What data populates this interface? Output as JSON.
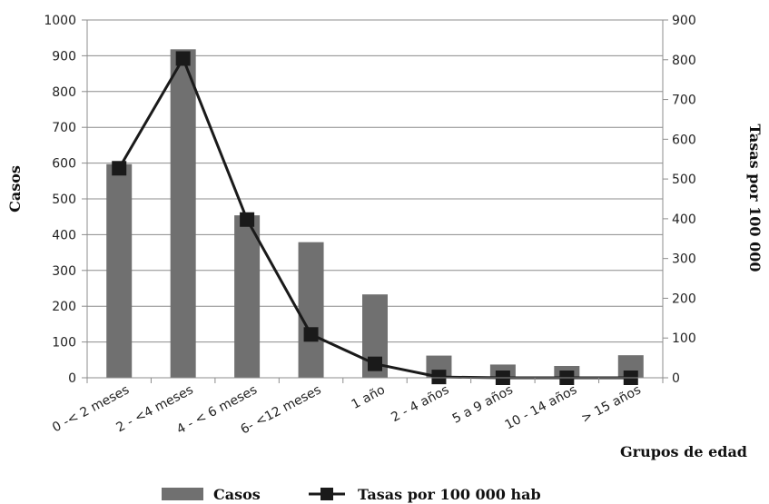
{
  "chart_data": {
    "type": "bar",
    "categories": [
      "0 -< 2 meses",
      "2 - <4 meses",
      "4 - < 6 meses",
      "6- <12 meses",
      "1 año",
      "2 - 4 años",
      "5 a 9 años",
      "10 - 14 años",
      "> 15 años"
    ],
    "series": [
      {
        "name": "Casos",
        "type": "bar",
        "axis": "left",
        "color": "#707070",
        "values": [
          597,
          918,
          454,
          379,
          233,
          62,
          37,
          33,
          63
        ]
      },
      {
        "name": "Tasas por 100 000 hab",
        "type": "line",
        "axis": "right",
        "color": "#1a1a1a",
        "marker": "square",
        "values": [
          527,
          803,
          398,
          109,
          35,
          2,
          0,
          0,
          0
        ]
      }
    ],
    "xlabel": "Grupos de edad",
    "ylabel": "Casos",
    "y2label": "Tasas por 100 000",
    "ylim": [
      0,
      1000
    ],
    "y2lim": [
      0,
      900
    ],
    "yticks": [
      0,
      100,
      200,
      300,
      400,
      500,
      600,
      700,
      800,
      900,
      1000
    ],
    "y2ticks": [
      0,
      100,
      200,
      300,
      400,
      500,
      600,
      700,
      800,
      900
    ],
    "grid": true,
    "legend_position": "bottom"
  }
}
